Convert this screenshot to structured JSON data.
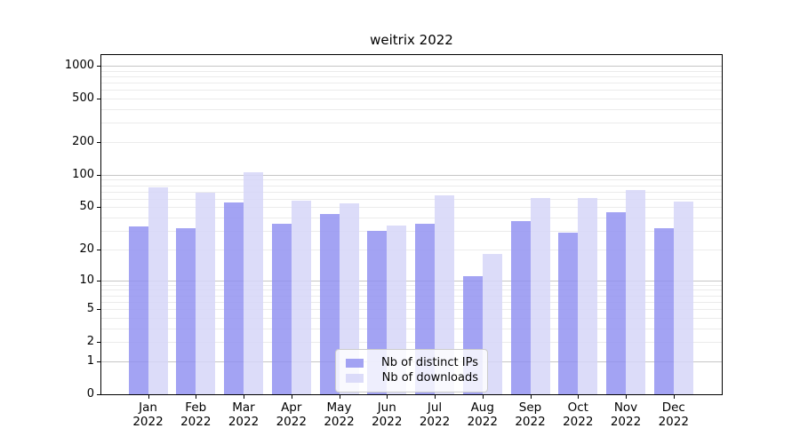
{
  "chart_data": {
    "type": "bar",
    "title": "weitrix 2022",
    "categories": [
      "Jan 2022",
      "Feb 2022",
      "Mar 2022",
      "Apr 2022",
      "May 2022",
      "Jun 2022",
      "Jul 2022",
      "Aug 2022",
      "Sep 2022",
      "Oct 2022",
      "Nov 2022",
      "Dec 2022"
    ],
    "month_labels": [
      "Jan",
      "Feb",
      "Mar",
      "Apr",
      "May",
      "Jun",
      "Jul",
      "Aug",
      "Sep",
      "Oct",
      "Nov",
      "Dec"
    ],
    "year_label": "2022",
    "series": [
      {
        "name": "Nb of distinct IPs",
        "color": "rgba(143,143,240,0.82)",
        "values": [
          33,
          32,
          55,
          35,
          43,
          30,
          35,
          11,
          37,
          29,
          45,
          32
        ]
      },
      {
        "name": "Nb of downloads",
        "color": "rgba(214,214,248,0.85)",
        "values": [
          77,
          68,
          105,
          58,
          54,
          34,
          64,
          18,
          61,
          61,
          72,
          57
        ]
      }
    ],
    "y_scale": "log1p",
    "y_ticks": [
      1000,
      500,
      200,
      100,
      50,
      20,
      10,
      5,
      2,
      1,
      0
    ],
    "y_major_gridlines": [
      1,
      10,
      100,
      1000
    ],
    "ylim": [
      0,
      1200
    ],
    "grid": "horizontal major+minor",
    "legend_position": "lower center",
    "colors": {
      "grid_major": "#c6c6c6",
      "grid_minor": "#ebebeb",
      "axis": "#000000",
      "legend_border": "#cccccc"
    }
  }
}
